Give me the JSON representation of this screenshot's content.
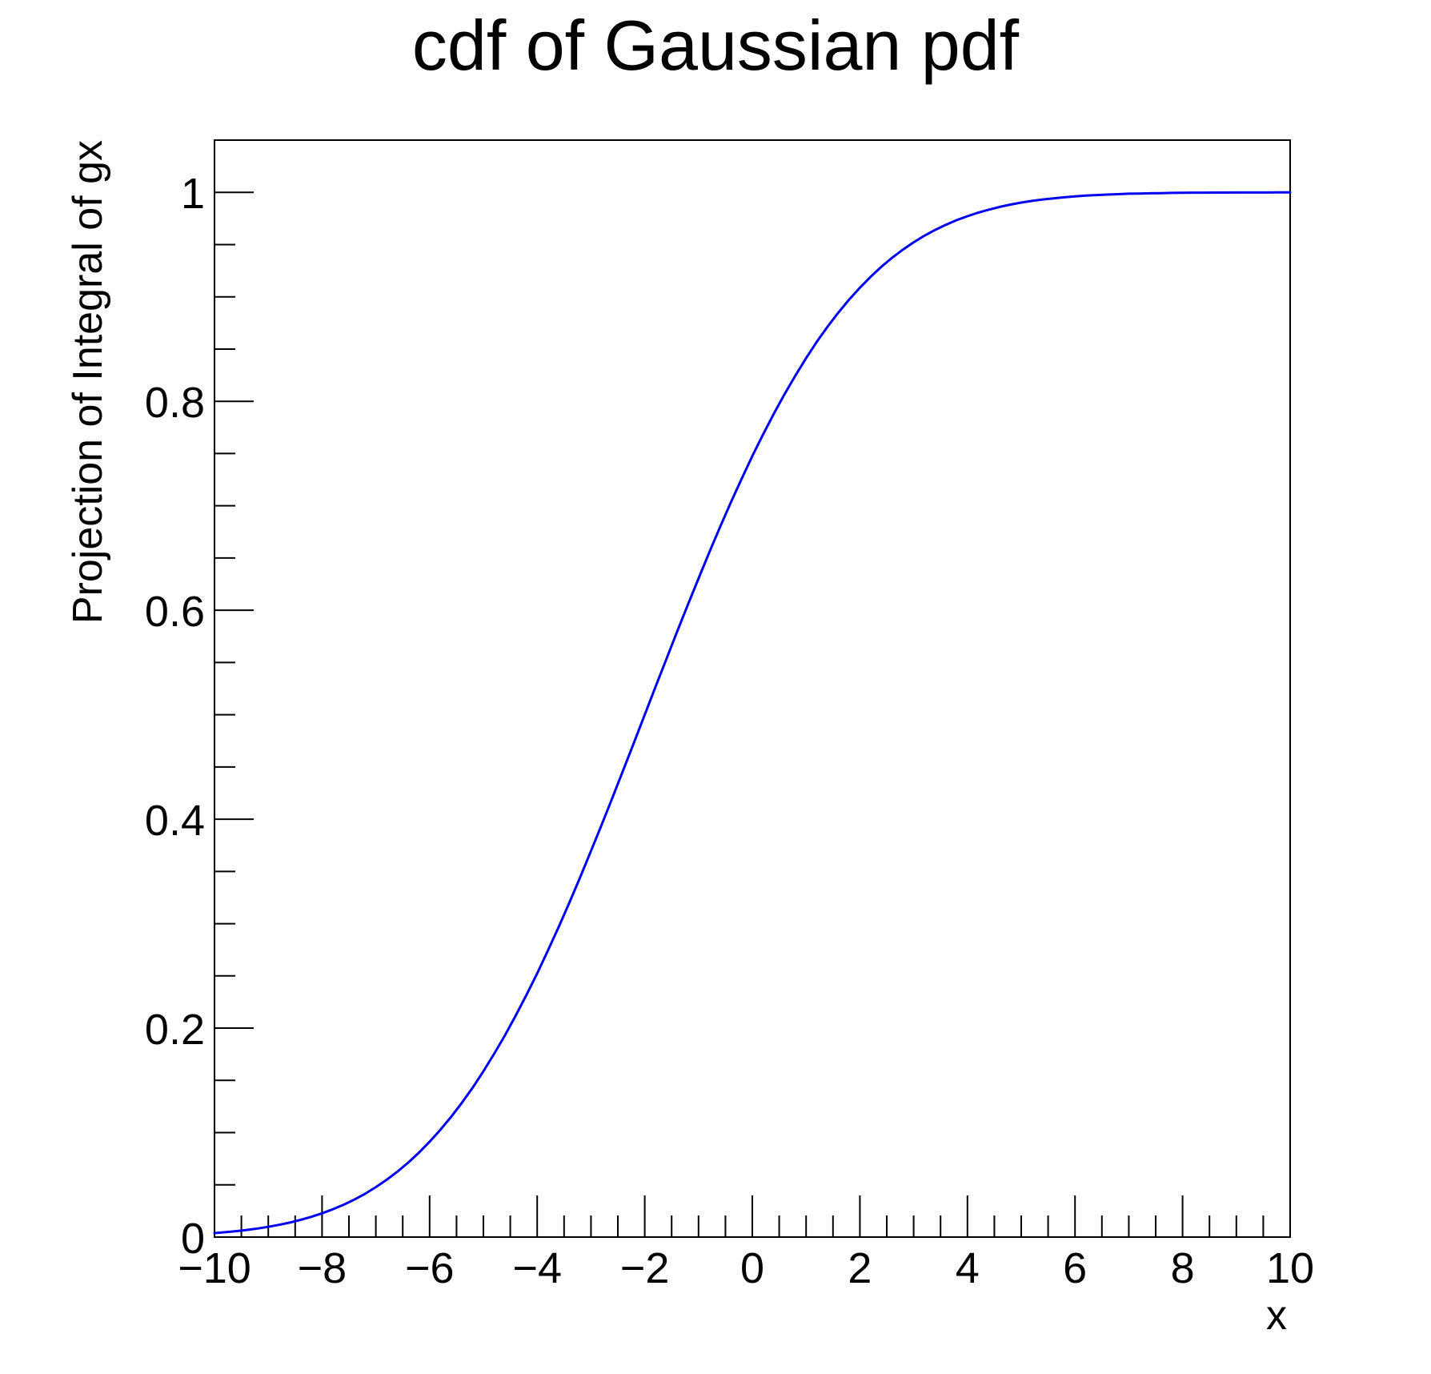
{
  "chart_data": {
    "type": "line",
    "title": "cdf of Gaussian pdf",
    "xlabel": "x",
    "ylabel": "Projection of Integral of gx",
    "xlim": [
      -10,
      10
    ],
    "ylim": [
      0,
      1.05
    ],
    "grid": false,
    "legend": null,
    "x_major_ticks": [
      -10,
      -8,
      -6,
      -4,
      -2,
      0,
      2,
      4,
      6,
      8,
      10
    ],
    "x_tick_labels": [
      "−10",
      "−8",
      "−6",
      "−4",
      "−2",
      "0",
      "2",
      "4",
      "6",
      "8",
      "10"
    ],
    "x_minor_step": 0.5,
    "y_major_ticks": [
      0,
      0.2,
      0.4,
      0.6,
      0.8,
      1
    ],
    "y_tick_labels": [
      "0",
      "0.2",
      "0.4",
      "0.6",
      "0.8",
      "1"
    ],
    "y_minor_step": 0.05,
    "series": [
      {
        "name": "gaussian-cdf-curve",
        "color": "#0000f0",
        "line_width": 3,
        "shape": "gaussian cdf, mean ≈ -2, sigma ≈ 3, rising from 0 at x=-10 to 1 by x≈6",
        "x_start": -10,
        "x_step": 0.2,
        "y": [
          0.0038,
          0.0047,
          0.0057,
          0.0068,
          0.0082,
          0.0098,
          0.0117,
          0.0139,
          0.0165,
          0.0194,
          0.0228,
          0.0266,
          0.031,
          0.0359,
          0.0415,
          0.0478,
          0.0548,
          0.0626,
          0.0712,
          0.0808,
          0.0913,
          0.1026,
          0.1151,
          0.1285,
          0.143,
          0.1587,
          0.1754,
          0.1931,
          0.2119,
          0.2318,
          0.2524,
          0.2743,
          0.2969,
          0.3203,
          0.3446,
          0.3696,
          0.3948,
          0.4207,
          0.447,
          0.4734,
          0.5,
          0.5266,
          0.553,
          0.5793,
          0.6052,
          0.6304,
          0.6554,
          0.6797,
          0.7031,
          0.7257,
          0.7476,
          0.7682,
          0.7881,
          0.8069,
          0.8246,
          0.8413,
          0.857,
          0.8715,
          0.8849,
          0.8974,
          0.9087,
          0.9192,
          0.9288,
          0.9374,
          0.9452,
          0.9522,
          0.9585,
          0.9641,
          0.969,
          0.9734,
          0.9772,
          0.9806,
          0.9835,
          0.9861,
          0.9883,
          0.9902,
          0.9918,
          0.9932,
          0.9943,
          0.9953,
          0.9962,
          0.9969,
          0.9974,
          0.9979,
          0.9983,
          0.9987,
          0.9989,
          0.9991,
          0.9993,
          0.9995,
          0.9996,
          0.9997,
          0.9997,
          0.9998,
          0.9998,
          0.9999,
          0.9999,
          0.9999,
          0.9999,
          1.0,
          1.0
        ]
      }
    ]
  },
  "colors": {
    "background": "#ffffff",
    "axis": "#000000",
    "curve": "#0000f0",
    "text": "#000000"
  }
}
